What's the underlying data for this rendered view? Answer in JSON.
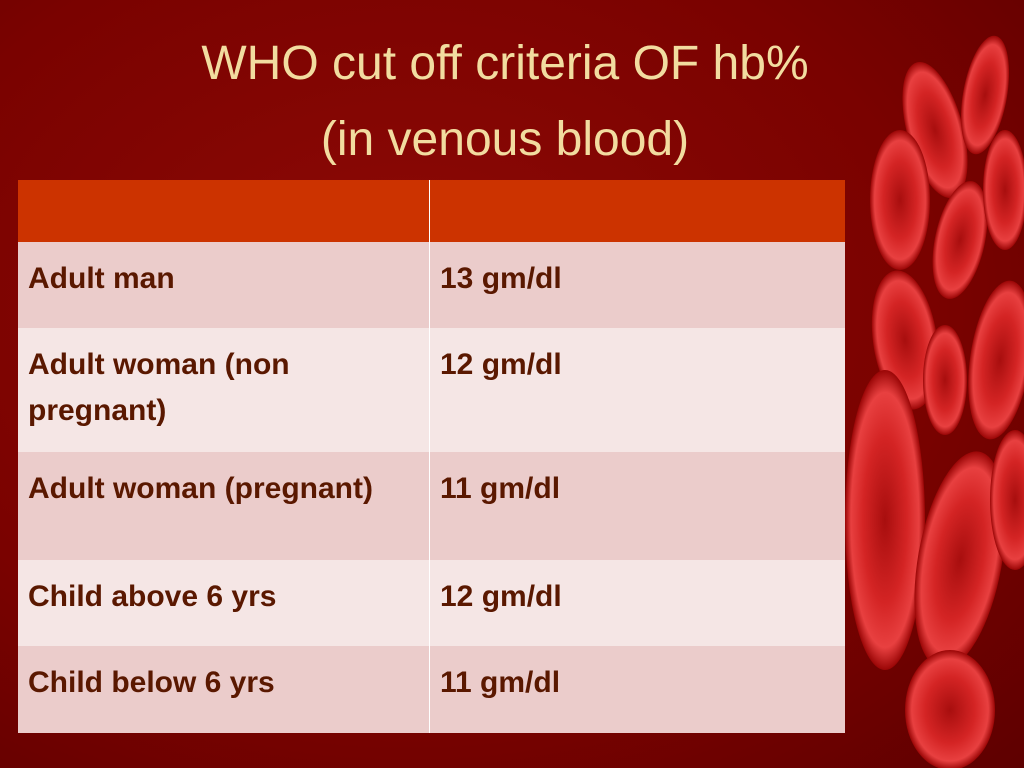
{
  "title": {
    "line1": "WHO cut off criteria OF hb%",
    "line2": "(in venous blood)"
  },
  "table": {
    "rows": [
      [
        "Adult man",
        "13 gm/dl"
      ],
      [
        "Adult woman (non pregnant)",
        "12 gm/dl"
      ],
      [
        "Adult woman (pregnant)",
        "11 gm/dl"
      ],
      [
        "Child above 6 yrs",
        "12 gm/dl"
      ],
      [
        "Child below 6 yrs",
        "11 gm/dl"
      ]
    ]
  }
}
